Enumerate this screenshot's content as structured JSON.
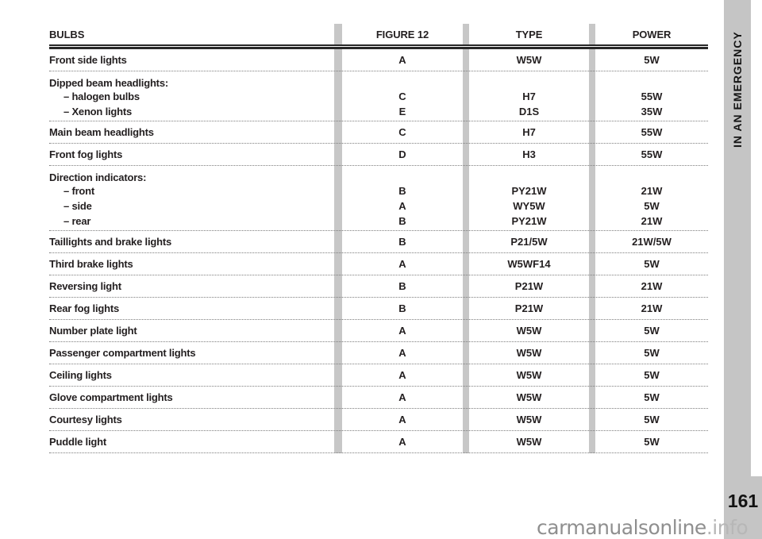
{
  "page": {
    "sidebar_label": "IN AN EMERGENCY",
    "page_number": "161",
    "watermark_main": "carmanualsonline",
    "watermark_suffix": ".info"
  },
  "colors": {
    "sidebar_gray": "#c5c5c5",
    "separator_gray": "#c7c7c7",
    "text_black": "#231f20",
    "watermark_gray": "#8f8f8f",
    "watermark_light_gray": "#b7b7b7"
  },
  "table": {
    "headers": {
      "bulbs": "BULBS",
      "figure": "FIGURE 12",
      "type": "TYPE",
      "power": "POWER"
    },
    "rows": [
      {
        "label": "Front side lights",
        "figure": "A",
        "type": "W5W",
        "power": "5W"
      },
      {
        "label": "Dipped beam headlights:",
        "subs": [
          {
            "label": "– halogen bulbs",
            "figure": "C",
            "type": "H7",
            "power": "55W"
          },
          {
            "label": "– Xenon lights",
            "figure": "E",
            "type": "D1S",
            "power": "35W"
          }
        ]
      },
      {
        "label": "Main beam headlights",
        "figure": "C",
        "type": "H7",
        "power": "55W"
      },
      {
        "label": "Front fog lights",
        "figure": "D",
        "type": "H3",
        "power": "55W"
      },
      {
        "label": "Direction indicators:",
        "subs": [
          {
            "label": "– front",
            "figure": "B",
            "type": "PY21W",
            "power": "21W"
          },
          {
            "label": "– side",
            "figure": "A",
            "type": "WY5W",
            "power": "5W"
          },
          {
            "label": "– rear",
            "figure": "B",
            "type": "PY21W",
            "power": "21W"
          }
        ]
      },
      {
        "label": "Taillights and brake lights",
        "figure": "B",
        "type": "P21/5W",
        "power": "21W/5W"
      },
      {
        "label": "Third brake lights",
        "figure": "A",
        "type": "W5WF14",
        "power": "5W"
      },
      {
        "label": "Reversing light",
        "figure": "B",
        "type": "P21W",
        "power": "21W"
      },
      {
        "label": "Rear fog lights",
        "figure": "B",
        "type": "P21W",
        "power": "21W"
      },
      {
        "label": "Number plate light",
        "figure": "A",
        "type": "W5W",
        "power": "5W"
      },
      {
        "label": "Passenger compartment lights",
        "figure": "A",
        "type": "W5W",
        "power": "5W"
      },
      {
        "label": "Ceiling lights",
        "figure": "A",
        "type": "W5W",
        "power": "5W"
      },
      {
        "label": "Glove compartment lights",
        "figure": "A",
        "type": "W5W",
        "power": "5W"
      },
      {
        "label": "Courtesy lights",
        "figure": "A",
        "type": "W5W",
        "power": "5W"
      },
      {
        "label": "Puddle light",
        "figure": "A",
        "type": "W5W",
        "power": "5W"
      }
    ]
  }
}
